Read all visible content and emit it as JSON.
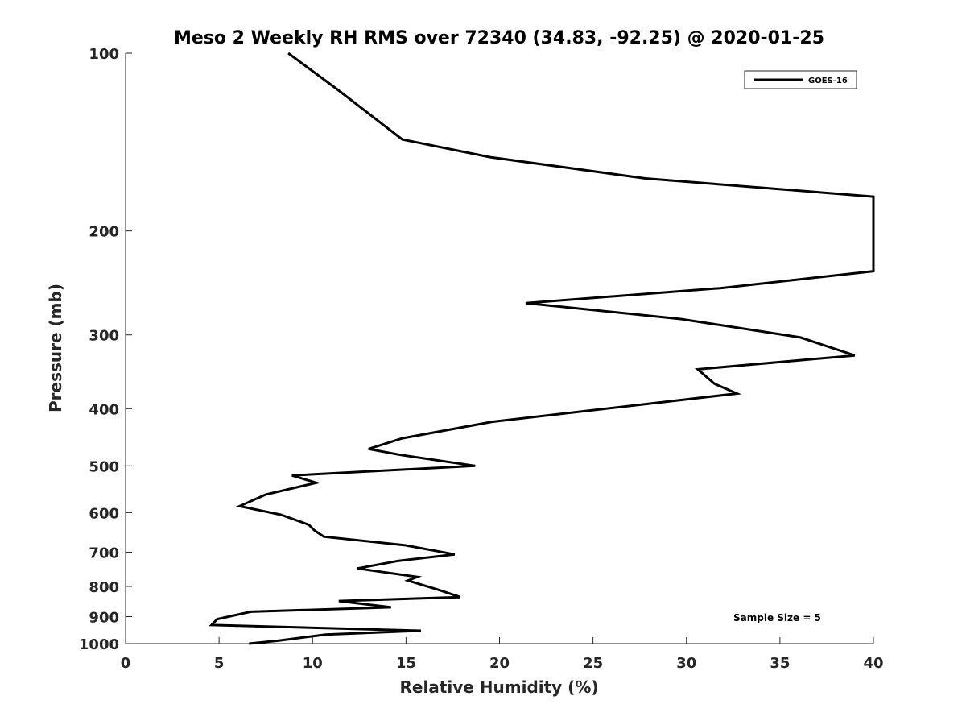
{
  "chart_data": {
    "type": "line",
    "title": "Meso 2 Weekly RH RMS over 72340 (34.83, -92.25) @ 2020-01-25",
    "xlabel": "Relative Humidity (%)",
    "ylabel": "Pressure (mb)",
    "xlim": [
      0,
      40
    ],
    "ylim": [
      100,
      1000
    ],
    "y_scale": "log",
    "y_reversed": true,
    "grid": false,
    "x_ticks": [
      "0",
      "5",
      "10",
      "15",
      "20",
      "25",
      "30",
      "35",
      "40"
    ],
    "y_ticks": [
      "100",
      "200",
      "300",
      "400",
      "500",
      "600",
      "700",
      "800",
      "900",
      "1000"
    ],
    "legend_placement": "top-right",
    "annotation": "Sample Size = 5",
    "series": [
      {
        "name": "GOES-16",
        "color": "#000000",
        "x": [
          8.7,
          11.3,
          14.8,
          19.5,
          27.8,
          40,
          40,
          31.8,
          21.4,
          29.7,
          36.1,
          39,
          30.6,
          31.5,
          32.7,
          19.6,
          14.8,
          13,
          14.7,
          18.7,
          8.9,
          10.2,
          7.5,
          6.1,
          8.3,
          9.8,
          10.1,
          10.6,
          14.9,
          17.6,
          14.6,
          12.4,
          15.6,
          15.1,
          16.8,
          17.9,
          11.4,
          14.2,
          6.7,
          4.9,
          4.6,
          15.8,
          10.7,
          8.2,
          6.6
        ],
        "y": [
          100,
          115,
          140,
          150,
          163,
          175,
          234,
          250,
          265,
          282,
          303,
          325,
          343,
          363,
          377,
          421,
          449,
          468,
          479,
          500,
          519,
          534,
          559,
          585,
          605,
          629,
          643,
          659,
          681,
          706,
          724,
          746,
          771,
          782,
          812,
          834,
          847,
          868,
          883,
          909,
          930,
          951,
          965,
          988,
          1009
        ]
      }
    ]
  }
}
